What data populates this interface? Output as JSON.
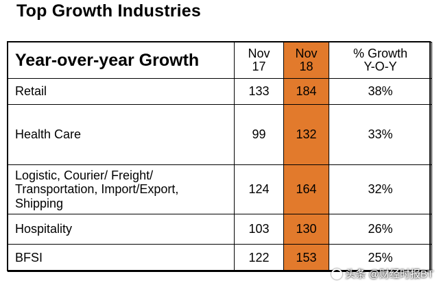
{
  "title": "Top Growth Industries",
  "table": {
    "header": {
      "label": "Year-over-year Growth",
      "col_nov17_line1": "Nov",
      "col_nov17_line2": "17",
      "col_nov18_line1": "Nov",
      "col_nov18_line2": "18",
      "col_growth_line1": "% Growth",
      "col_growth_line2": "Y-O-Y"
    },
    "rows": [
      {
        "industry_lines": [
          "Retail"
        ],
        "nov17": "133",
        "nov18": "184",
        "growth": "38%"
      },
      {
        "industry_lines": [
          "Health Care"
        ],
        "nov17": "99",
        "nov18": "132",
        "growth": "33%"
      },
      {
        "industry_lines": [
          "Logistic, Courier/ Freight/",
          "Transportation, Import/Export,",
          "Shipping"
        ],
        "nov17": "124",
        "nov18": "164",
        "growth": "32%"
      },
      {
        "industry_lines": [
          "Hospitality"
        ],
        "nov17": "103",
        "nov18": "130",
        "growth": "26%"
      },
      {
        "industry_lines": [
          "BFSI"
        ],
        "nov17": "122",
        "nov18": "153",
        "growth": "25%"
      }
    ],
    "highlight_color": "#e27a2c"
  },
  "watermark": {
    "text": "头条 @财经时报BT"
  }
}
